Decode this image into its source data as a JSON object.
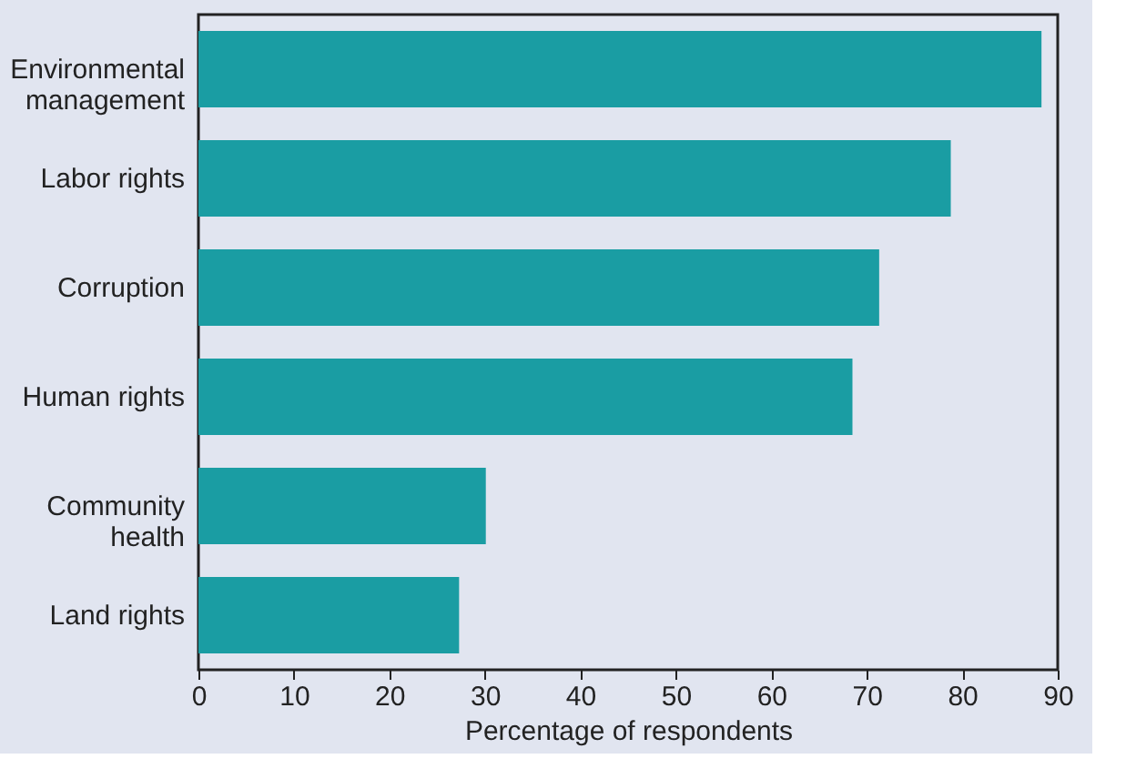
{
  "chart_data": {
    "type": "bar",
    "orientation": "horizontal",
    "xlabel": "Percentage of respondents",
    "categories": [
      "Environmental management",
      "Labor rights",
      "Corruption",
      "Human rights",
      "Community health",
      "Land rights"
    ],
    "values": [
      88.3,
      78.8,
      71.3,
      68.5,
      30.1,
      27.3
    ],
    "color": "#1a9da3",
    "xlim": [
      0,
      90
    ],
    "xticks": [
      0,
      10,
      20,
      30,
      40,
      50,
      60,
      70,
      80,
      90
    ],
    "grid": false
  }
}
